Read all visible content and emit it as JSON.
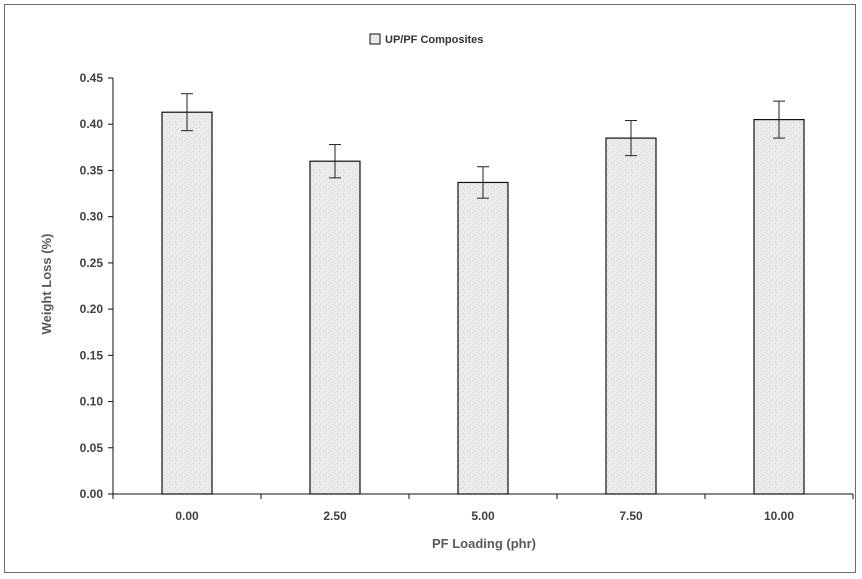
{
  "chart_data": {
    "type": "bar",
    "title": "",
    "xlabel": "PF Loading (phr)",
    "ylabel": "Weight Loss (%)",
    "categories": [
      "0.00",
      "2.50",
      "5.00",
      "7.50",
      "10.00"
    ],
    "series": [
      {
        "name": "UP/PF Composites",
        "values": [
          0.413,
          0.36,
          0.337,
          0.385,
          0.405
        ],
        "errors": [
          0.02,
          0.018,
          0.017,
          0.019,
          0.02
        ]
      }
    ],
    "ylim": [
      0,
      0.45
    ],
    "yticks": [
      "0.00",
      "0.05",
      "0.10",
      "0.15",
      "0.20",
      "0.25",
      "0.30",
      "0.35",
      "0.40",
      "0.45"
    ],
    "grid": false,
    "legend_position": "top-center",
    "bar_fill": "#e9e9e9",
    "bar_stroke": "#111111"
  }
}
